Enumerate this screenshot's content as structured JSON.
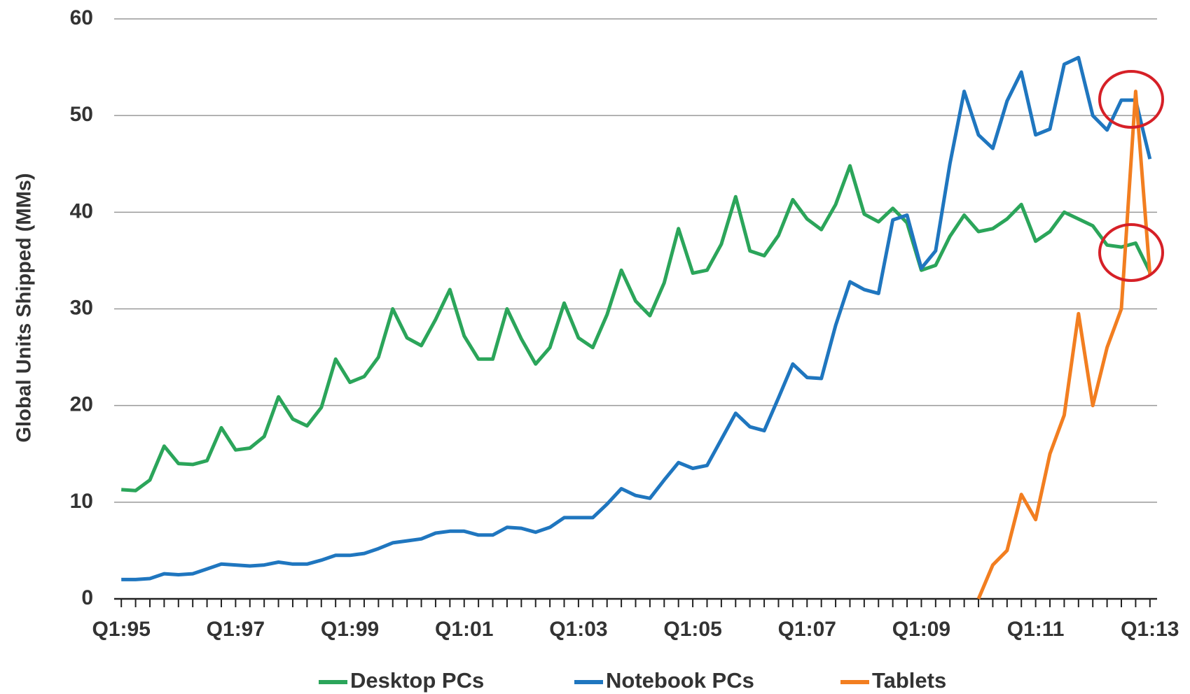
{
  "chart_data": {
    "type": "line",
    "y_label": "Global Units Shipped (MMs)",
    "categories": [
      "Q1:95",
      null,
      null,
      null,
      null,
      null,
      null,
      null,
      "Q1:97",
      null,
      null,
      null,
      null,
      null,
      null,
      null,
      "Q1:99",
      null,
      null,
      null,
      null,
      null,
      null,
      null,
      "Q1:01",
      null,
      null,
      null,
      null,
      null,
      null,
      null,
      "Q1:03",
      null,
      null,
      null,
      null,
      null,
      null,
      null,
      "Q1:05",
      null,
      null,
      null,
      null,
      null,
      null,
      null,
      "Q1:07",
      null,
      null,
      null,
      null,
      null,
      null,
      null,
      "Q1:09",
      null,
      null,
      null,
      null,
      null,
      null,
      null,
      "Q1:11",
      null,
      null,
      null,
      null,
      null,
      null,
      null,
      "Q1:13"
    ],
    "series": [
      {
        "name": "Desktop PCs",
        "color": "#2ba55a",
        "values": [
          11.3,
          11.2,
          12.3,
          15.8,
          14,
          13.9,
          14.3,
          17.7,
          15.4,
          15.6,
          16.8,
          20.9,
          18.6,
          17.9,
          19.8,
          24.8,
          22.4,
          23,
          25,
          30,
          27,
          26.2,
          28.9,
          32,
          27.2,
          24.8,
          24.8,
          30,
          26.9,
          24.3,
          26,
          30.6,
          27,
          26,
          29.4,
          34,
          30.8,
          29.3,
          32.7,
          38.3,
          33.7,
          34,
          36.7,
          41.6,
          36,
          35.5,
          37.6,
          41.3,
          39.3,
          38.2,
          40.8,
          44.8,
          39.8,
          39,
          40.4,
          38.9,
          34,
          34.5,
          37.5,
          39.7,
          38,
          38.3,
          39.3,
          40.8,
          37,
          38,
          40,
          39.3,
          38.6,
          36.6,
          36.4,
          36.8,
          33.8
        ]
      },
      {
        "name": "Notebook PCs",
        "color": "#1f76bf",
        "values": [
          2,
          2,
          2.1,
          2.6,
          2.5,
          2.6,
          3.1,
          3.6,
          3.5,
          3.4,
          3.5,
          3.8,
          3.6,
          3.6,
          4,
          4.5,
          4.5,
          4.7,
          5.2,
          5.8,
          6,
          6.2,
          6.8,
          7,
          7,
          6.6,
          6.6,
          7.4,
          7.3,
          6.9,
          7.4,
          8.4,
          8.4,
          8.4,
          9.8,
          11.4,
          10.7,
          10.4,
          12.3,
          14.1,
          13.5,
          13.8,
          16.5,
          19.2,
          17.8,
          17.4,
          20.8,
          24.3,
          22.9,
          22.8,
          28.3,
          32.8,
          32,
          31.6,
          39.2,
          39.7,
          34.2,
          36,
          45,
          52.5,
          48,
          46.6,
          51.5,
          54.5,
          48,
          48.6,
          55.3,
          56,
          50,
          48.5,
          51.6,
          51.6,
          45.5
        ]
      },
      {
        "name": "Tablets",
        "color": "#f27e20",
        "values": [
          null,
          null,
          null,
          null,
          null,
          null,
          null,
          null,
          null,
          null,
          null,
          null,
          null,
          null,
          null,
          null,
          null,
          null,
          null,
          null,
          null,
          null,
          null,
          null,
          null,
          null,
          null,
          null,
          null,
          null,
          null,
          null,
          null,
          null,
          null,
          null,
          null,
          null,
          null,
          null,
          null,
          null,
          null,
          null,
          null,
          null,
          null,
          null,
          null,
          null,
          null,
          null,
          null,
          null,
          null,
          null,
          null,
          null,
          null,
          null,
          0,
          3.5,
          5,
          10.8,
          8.2,
          15,
          19,
          29.5,
          20,
          26,
          30,
          52.5,
          33.5
        ]
      }
    ],
    "ylim": [
      0,
      60
    ],
    "yticks": [
      0,
      10,
      20,
      30,
      40,
      50,
      60
    ],
    "grid": true,
    "legend": "bottom"
  }
}
